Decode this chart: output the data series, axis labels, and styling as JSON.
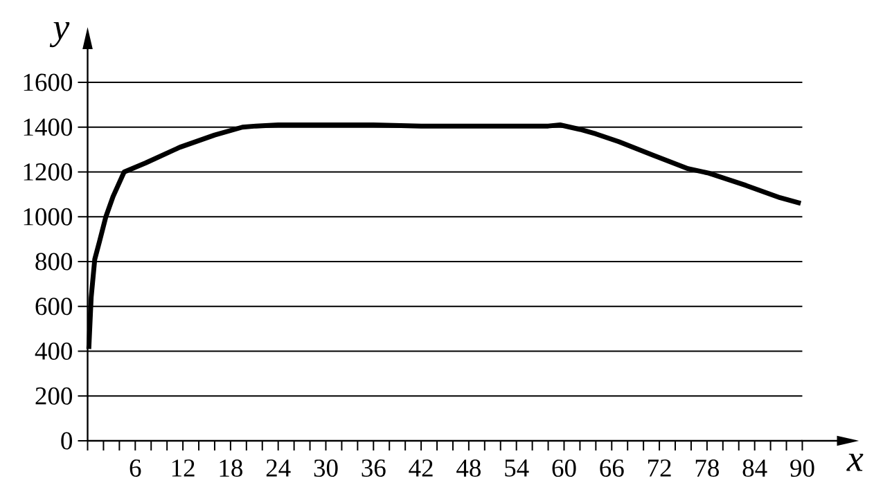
{
  "chart_data": {
    "type": "line",
    "xlabel": "x",
    "ylabel": "y",
    "x": [
      0.15,
      0.45,
      0.9,
      1.5,
      2.3,
      3.2,
      3.9,
      4.6,
      7.3,
      11.6,
      16,
      19.5,
      21.2,
      24,
      30,
      36,
      42,
      48,
      54,
      58,
      59.5,
      62,
      64,
      66.9,
      71.2,
      75.6,
      78.2,
      82.9,
      87.2,
      89.8
    ],
    "values": [
      410,
      640,
      810,
      890,
      1000,
      1090,
      1145,
      1200,
      1240,
      1310,
      1365,
      1400,
      1405,
      1410,
      1410,
      1410,
      1405,
      1405,
      1405,
      1405,
      1410,
      1390,
      1370,
      1335,
      1275,
      1215,
      1195,
      1140,
      1085,
      1060
    ],
    "color": "#000000",
    "xlim": [
      0,
      90
    ],
    "ylim": [
      0,
      1600
    ],
    "xticks": [
      {
        "value": 0,
        "label": null
      },
      {
        "value": 2,
        "label": null
      },
      {
        "value": 4,
        "label": null
      },
      6,
      {
        "value": 8,
        "label": null
      },
      {
        "value": 10,
        "label": null
      },
      12,
      {
        "value": 14,
        "label": null
      },
      {
        "value": 16,
        "label": null
      },
      18,
      {
        "value": 20,
        "label": null
      },
      {
        "value": 22,
        "label": null
      },
      24,
      {
        "value": 26,
        "label": null
      },
      {
        "value": 28,
        "label": null
      },
      30,
      {
        "value": 32,
        "label": null
      },
      {
        "value": 34,
        "label": null
      },
      36,
      {
        "value": 38,
        "label": null
      },
      {
        "value": 40,
        "label": null
      },
      42,
      {
        "value": 44,
        "label": null
      },
      {
        "value": 46,
        "label": null
      },
      48,
      {
        "value": 50,
        "label": null
      },
      {
        "value": 52,
        "label": null
      },
      54,
      {
        "value": 56,
        "label": null
      },
      {
        "value": 58,
        "label": null
      },
      60,
      {
        "value": 62,
        "label": null
      },
      {
        "value": 64,
        "label": null
      },
      66,
      {
        "value": 68,
        "label": null
      },
      {
        "value": 70,
        "label": null
      },
      72,
      {
        "value": 74,
        "label": null
      },
      {
        "value": 76,
        "label": null
      },
      78,
      {
        "value": 80,
        "label": null
      },
      {
        "value": 82,
        "label": null
      },
      84,
      {
        "value": 86,
        "label": null
      },
      {
        "value": 88,
        "label": null
      },
      90
    ],
    "yticks": [
      0,
      200,
      400,
      600,
      800,
      1000,
      1200,
      1400,
      1600
    ],
    "grid": "y"
  }
}
